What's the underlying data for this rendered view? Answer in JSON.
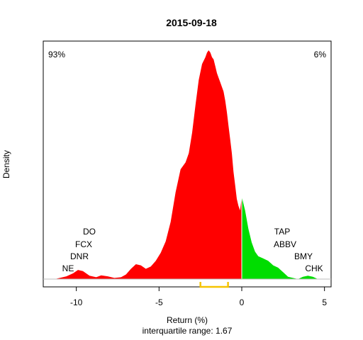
{
  "chart_data": {
    "type": "area",
    "title": "2015-09-18",
    "xlabel": "Return (%)",
    "ylabel": "Density",
    "subtitle": "interquartile range: 1.67",
    "xlim": [
      -12.0,
      5.4
    ],
    "xticks": [
      -10,
      -5,
      0,
      5
    ],
    "pct_negative": "93%",
    "pct_positive": "6%",
    "colors": {
      "negative": "#ff0000",
      "positive": "#00dd00",
      "iqr": "#f5c400",
      "axis": "#000000",
      "negative_text": "#ff0000",
      "positive_text": "#00aa00"
    },
    "iqr_range": [
      -2.5,
      -0.83
    ],
    "density": {
      "x": [
        -11.3,
        -11.0,
        -10.6,
        -10.2,
        -9.9,
        -9.6,
        -9.2,
        -8.8,
        -8.5,
        -8.1,
        -7.7,
        -7.3,
        -7.0,
        -6.7,
        -6.4,
        -6.1,
        -5.8,
        -5.5,
        -5.2,
        -4.9,
        -4.6,
        -4.3,
        -4.0,
        -3.7,
        -3.4,
        -3.2,
        -3.0,
        -2.8,
        -2.6,
        -2.4,
        -2.2,
        -2.1,
        -2.0,
        -1.9,
        -1.8,
        -1.7,
        -1.6,
        -1.5,
        -1.4,
        -1.3,
        -1.2,
        -1.1,
        -1.0,
        -0.9,
        -0.8,
        -0.7,
        -0.6,
        -0.5,
        -0.4,
        -0.3,
        -0.2,
        -0.1,
        0.0,
        0.2,
        0.4,
        0.6,
        0.8,
        1.0,
        1.3,
        1.6,
        1.9,
        2.2,
        2.5,
        2.8,
        3.1,
        3.4,
        3.7,
        4.0,
        4.3,
        4.6
      ],
      "y": [
        0.0,
        0.005,
        0.012,
        0.025,
        0.04,
        0.035,
        0.015,
        0.008,
        0.016,
        0.012,
        0.005,
        0.008,
        0.02,
        0.045,
        0.065,
        0.06,
        0.045,
        0.055,
        0.08,
        0.115,
        0.165,
        0.25,
        0.38,
        0.48,
        0.51,
        0.55,
        0.64,
        0.76,
        0.87,
        0.94,
        0.97,
        0.99,
        1.0,
        0.99,
        0.97,
        0.96,
        0.93,
        0.9,
        0.88,
        0.86,
        0.84,
        0.82,
        0.78,
        0.73,
        0.67,
        0.61,
        0.55,
        0.47,
        0.41,
        0.35,
        0.32,
        0.3,
        0.36,
        0.3,
        0.22,
        0.16,
        0.12,
        0.1,
        0.09,
        0.08,
        0.06,
        0.05,
        0.03,
        0.01,
        0.005,
        0.0,
        0.01,
        0.015,
        0.01,
        0.0
      ]
    },
    "annotations_left": [
      "DO",
      "FCX",
      "DNR",
      "NE"
    ],
    "annotations_right": [
      "TAP",
      "ABBV",
      "BMY",
      "CHK"
    ]
  }
}
